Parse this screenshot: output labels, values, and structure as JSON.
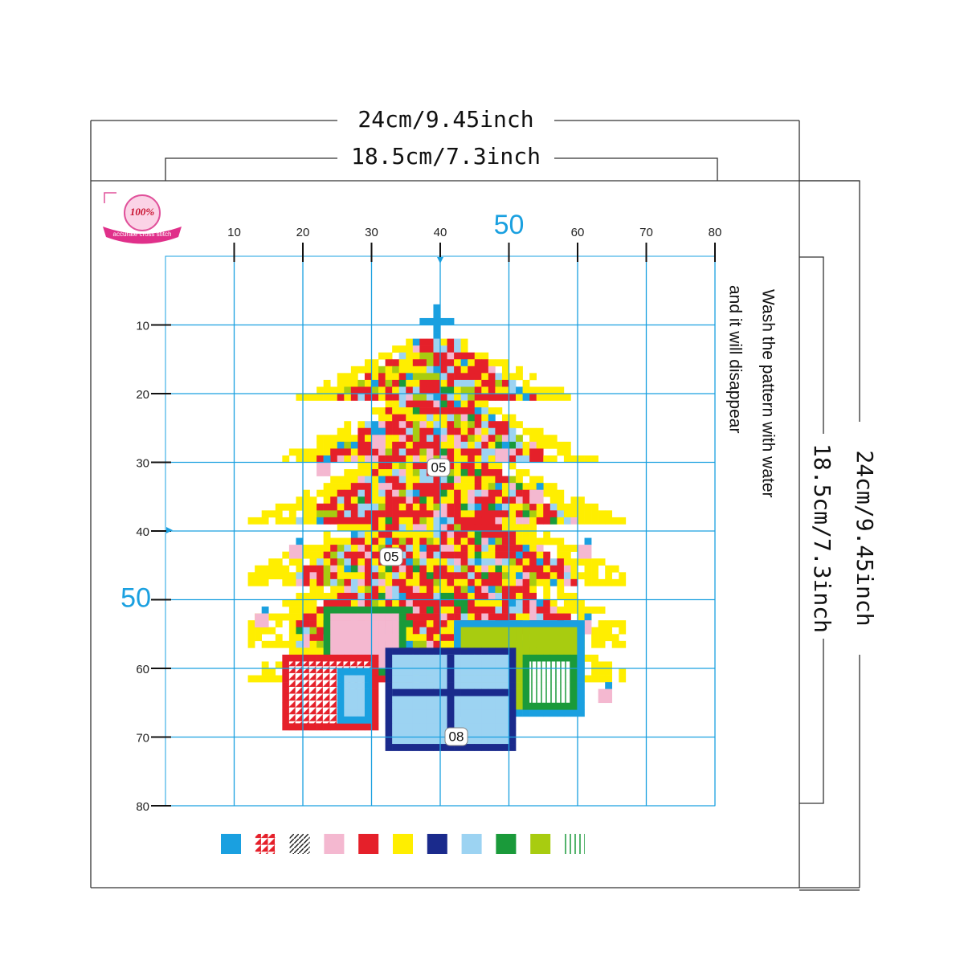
{
  "dimensions": {
    "outer_width": "24cm/9.45inch",
    "inner_width": "18.5cm/7.3inch",
    "outer_height": "24cm/9.45inch",
    "inner_height": "18.5cm/7.3inch"
  },
  "logo": {
    "badge": "100%",
    "ribbon": "accurate cross stitch"
  },
  "grid": {
    "top_labels": [
      10,
      20,
      30,
      40,
      50,
      60,
      70,
      80
    ],
    "left_labels": [
      10,
      20,
      30,
      40,
      50,
      60,
      70,
      80
    ]
  },
  "note": [
    "Wash the pattern with water",
    "and it will disappear"
  ],
  "symbols": [
    "05",
    "05",
    "08"
  ]
}
